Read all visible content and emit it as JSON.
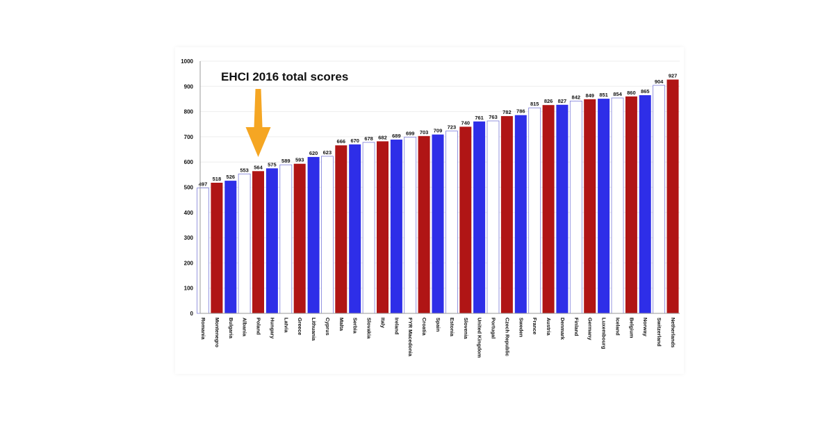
{
  "chart_data": {
    "type": "bar",
    "title": "EHCI 2016 total scores",
    "xlabel": "",
    "ylabel": "",
    "ylim": [
      0,
      1000
    ],
    "yticks": [
      0,
      100,
      200,
      300,
      400,
      500,
      600,
      700,
      800,
      900,
      1000
    ],
    "grid": true,
    "legend": "none",
    "annotation": {
      "type": "arrow",
      "target": "Poland",
      "color": "#F5A623"
    },
    "colors": {
      "red": "#B01515",
      "blue": "#2E2EE8",
      "white_bar_outline": "#7A7AD8"
    },
    "categories": [
      "Romania",
      "Montenegro",
      "Bulgaria",
      "Albania",
      "Poland",
      "Hungary",
      "Latvia",
      "Greece",
      "Lithuania",
      "Cyprus",
      "Malta",
      "Serbia",
      "Slovakia",
      "Italy",
      "Ireland",
      "FYR Macedonia",
      "Croatia",
      "Spain",
      "Estonia",
      "Slovenia",
      "United Kingdom",
      "Portugal",
      "Czech Republic",
      "Sweden",
      "France",
      "Austria",
      "Denmark",
      "Finland",
      "Germany",
      "Luxembourg",
      "Iceland",
      "Belgium",
      "Norway",
      "Switzerland",
      "Netherlands"
    ],
    "values": [
      497,
      518,
      526,
      553,
      564,
      575,
      589,
      593,
      620,
      623,
      666,
      670,
      678,
      682,
      689,
      699,
      703,
      709,
      723,
      740,
      761,
      763,
      782,
      786,
      815,
      826,
      827,
      842,
      849,
      851,
      854,
      860,
      865,
      904,
      927
    ],
    "bar_colors": [
      "white",
      "red",
      "blue",
      "white",
      "red",
      "blue",
      "white",
      "red",
      "blue",
      "white",
      "red",
      "blue",
      "white",
      "red",
      "blue",
      "white",
      "red",
      "blue",
      "white",
      "red",
      "blue",
      "white",
      "red",
      "blue",
      "white",
      "red",
      "blue",
      "white",
      "red",
      "blue",
      "white",
      "red",
      "blue",
      "white",
      "red"
    ]
  }
}
